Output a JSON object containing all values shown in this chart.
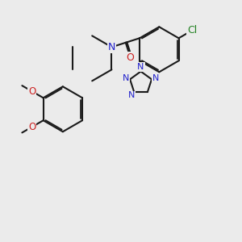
{
  "bg_color": "#ebebeb",
  "bond_color": "#1a1a1a",
  "N_color": "#2020cc",
  "O_color": "#cc2020",
  "Cl_color": "#208020",
  "lw": 1.5,
  "dbl_sep": 0.055,
  "figsize": [
    3.0,
    3.0
  ],
  "dpi": 100,
  "xlim": [
    0,
    10
  ],
  "ylim": [
    0,
    10
  ]
}
